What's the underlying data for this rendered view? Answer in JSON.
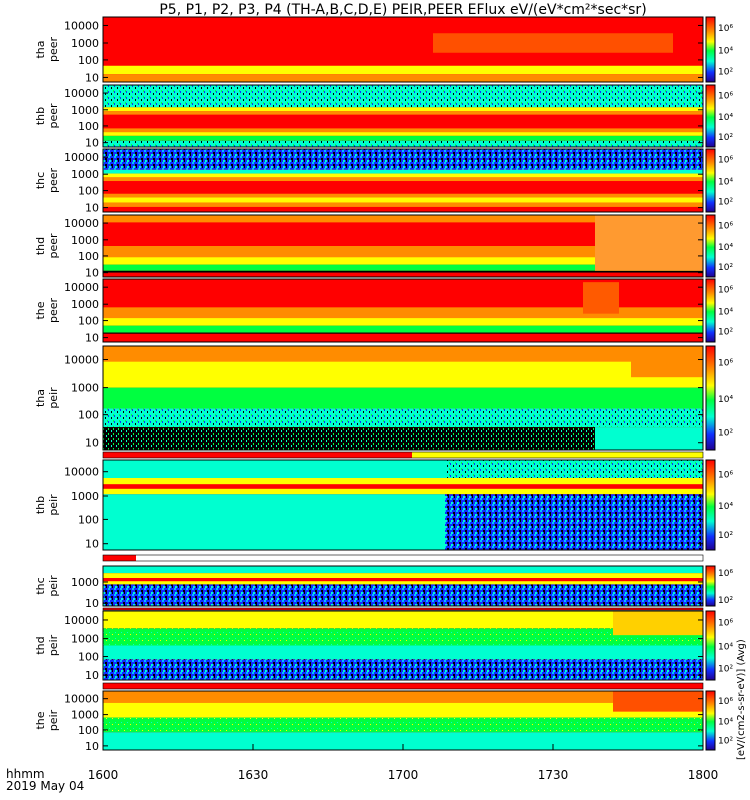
{
  "chart_data": {
    "type": "heatmap",
    "title": "P5, P1, P2, P3, P4 (TH-A,B,C,D,E) PEIR,PEER EFlux eV/(eV*cm²*sec*sr)",
    "x_ticks": [
      "1600",
      "1630",
      "1700",
      "1730",
      "1800"
    ],
    "x_range": [
      "16:00",
      "18:00"
    ],
    "footer": {
      "hhmm": "hhmm",
      "date": "2019 May 04"
    },
    "y_ticks": [
      "10",
      "100",
      "1000",
      "10000"
    ],
    "colorbar_label": "[eV/(cm2-s-sr-eV)] (Avg)",
    "colorbar_ticks": [
      "10²",
      "10⁴",
      "10⁶"
    ],
    "panels": [
      {
        "probe": "tha",
        "species": "peer"
      },
      {
        "probe": "thb",
        "species": "peer"
      },
      {
        "probe": "thc",
        "species": "peer"
      },
      {
        "probe": "thd",
        "species": "peer"
      },
      {
        "probe": "the",
        "species": "peer"
      },
      {
        "probe": "tha",
        "species": "peir"
      },
      {
        "probe": "thb",
        "species": "peir"
      },
      {
        "probe": "thc",
        "species": "peir"
      },
      {
        "probe": "thd",
        "species": "peir"
      },
      {
        "probe": "the",
        "species": "peir"
      }
    ],
    "colors": {
      "red": "#ff0000",
      "orange": "#ff8c00",
      "yellow": "#ffff00",
      "green": "#00ff40",
      "cyan": "#00ffd0",
      "blue": "#1030ff",
      "black": "#000000",
      "flag_red": "#ff0000",
      "flag_yellow": "#ffff00"
    }
  }
}
